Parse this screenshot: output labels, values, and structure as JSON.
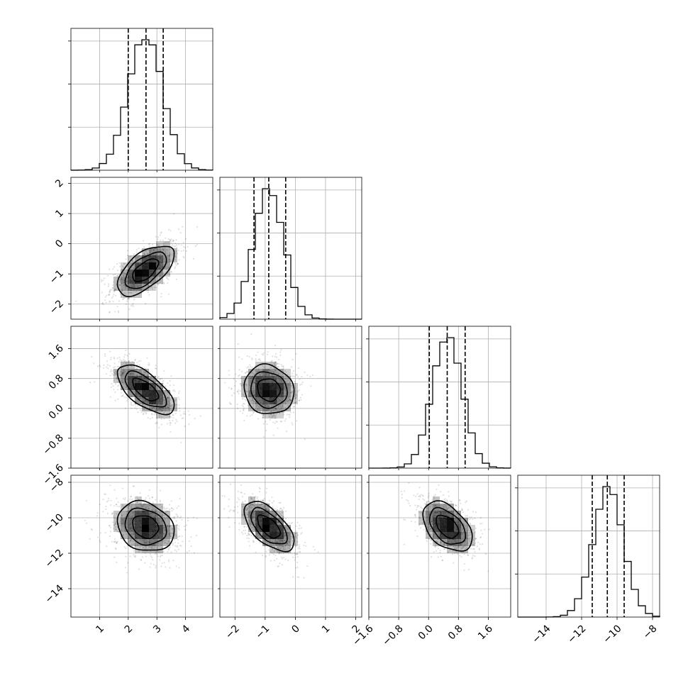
{
  "chart_data": {
    "type": "corner",
    "title": "",
    "parameters": [
      {
        "ticks": [
          1,
          2,
          3,
          4
        ],
        "tick_labels": [
          "1",
          "2",
          "3",
          "4"
        ],
        "range": [
          0.0,
          4.95
        ],
        "mean": 2.6,
        "sd": 0.6,
        "quantiles": [
          2.0,
          2.62,
          3.22
        ]
      },
      {
        "ticks": [
          -2,
          -1,
          0,
          1,
          2
        ],
        "tick_labels": [
          "−2",
          "−1",
          "0",
          "1",
          "2"
        ],
        "range": [
          -2.5,
          2.2
        ],
        "mean": -0.88,
        "sd": 0.5,
        "quantiles": [
          -1.37,
          -0.88,
          -0.32
        ]
      },
      {
        "ticks": [
          -1.6,
          -0.8,
          0.0,
          0.8,
          1.6
        ],
        "tick_labels": [
          "−1.6",
          "−0.8",
          "0.0",
          "0.8",
          "1.6"
        ],
        "range": [
          -1.6,
          2.2
        ],
        "mean": 0.5,
        "sd": 0.4,
        "quantiles": [
          0.02,
          0.5,
          0.98
        ]
      },
      {
        "ticks": [
          -14,
          -12,
          -10,
          -8
        ],
        "tick_labels": [
          "−14",
          "−12",
          "−10",
          "−8"
        ],
        "range": [
          -15.6,
          -7.6
        ],
        "mean": -10.5,
        "sd": 0.85,
        "quantiles": [
          -11.4,
          -10.55,
          -9.6
        ]
      }
    ],
    "correlations": {
      "1-0": 0.6,
      "2-0": -0.65,
      "2-1": -0.1,
      "3-0": -0.2,
      "3-1": -0.6,
      "3-2": -0.45
    },
    "grid": true,
    "colors": {
      "line": "#000000",
      "grid": "#b0b0b0",
      "density": "#000000",
      "points": "#000000"
    }
  }
}
